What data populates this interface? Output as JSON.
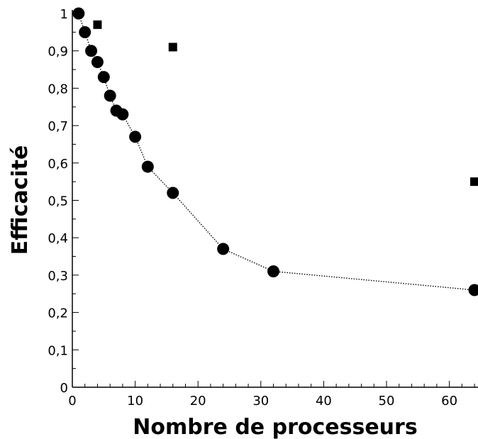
{
  "chart_data": {
    "type": "scatter",
    "title": "",
    "xlabel": "Nombre de processeurs",
    "ylabel": "Efficacité",
    "xlim": [
      0,
      64
    ],
    "ylim": [
      0,
      1.02
    ],
    "grid": false,
    "legend": "none",
    "x_ticks": [
      {
        "value": 0,
        "label": "0"
      },
      {
        "value": 10,
        "label": "10"
      },
      {
        "value": 20,
        "label": "20"
      },
      {
        "value": 30,
        "label": "30"
      },
      {
        "value": 40,
        "label": "40"
      },
      {
        "value": 50,
        "label": "50"
      },
      {
        "value": 60,
        "label": "60"
      }
    ],
    "y_ticks": [
      {
        "value": 0,
        "label": "0"
      },
      {
        "value": 0.1,
        "label": "0,1"
      },
      {
        "value": 0.2,
        "label": "0,2"
      },
      {
        "value": 0.3,
        "label": "0,3"
      },
      {
        "value": 0.4,
        "label": "0,4"
      },
      {
        "value": 0.5,
        "label": "0,5"
      },
      {
        "value": 0.6,
        "label": "0,6"
      },
      {
        "value": 0.7,
        "label": "0,7"
      },
      {
        "value": 0.8,
        "label": "0,8"
      },
      {
        "value": 0.9,
        "label": "0,9"
      },
      {
        "value": 1,
        "label": "1"
      }
    ],
    "series": [
      {
        "marker": "circle",
        "line": "dotted",
        "color": "#000000",
        "x": [
          1,
          2,
          3,
          4,
          5,
          6,
          7,
          8,
          10,
          12,
          16,
          24,
          32,
          64
        ],
        "y": [
          1.0,
          0.95,
          0.9,
          0.87,
          0.83,
          0.78,
          0.74,
          0.73,
          0.67,
          0.59,
          0.52,
          0.37,
          0.31,
          0.26
        ]
      },
      {
        "marker": "square",
        "line": "none",
        "color": "#000000",
        "x": [
          4,
          16,
          64
        ],
        "y": [
          0.97,
          0.91,
          0.55
        ]
      }
    ]
  }
}
